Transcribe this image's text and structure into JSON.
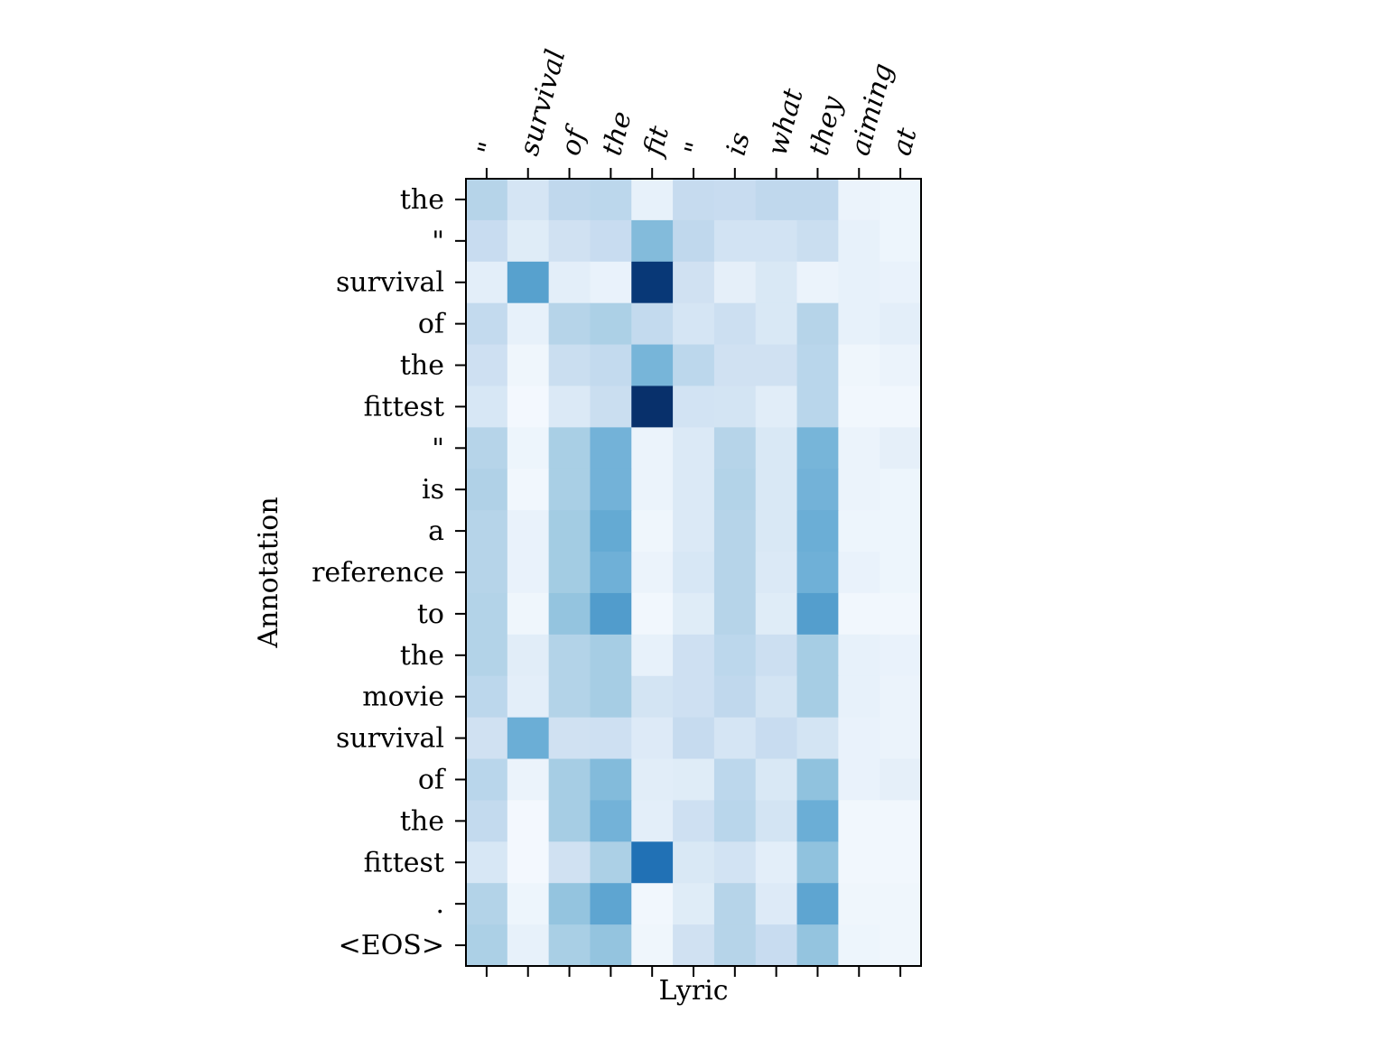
{
  "chart_data": {
    "type": "heatmap",
    "xlabel": "Lyric",
    "ylabel": "Annotation",
    "x_labels": [
      "\"",
      "survival",
      "of",
      "the",
      "fit",
      "\"",
      "is",
      "what",
      "they",
      "aiming",
      "at"
    ],
    "y_labels": [
      "the",
      "\"",
      "survival",
      "of",
      "the",
      "fittest",
      "\"",
      "is",
      "a",
      "reference",
      "to",
      "the",
      "movie",
      "survival",
      "of",
      "the",
      "fittest",
      ".",
      "<EOS>"
    ],
    "colormap": "Blues",
    "values": [
      [
        0.3,
        0.17,
        0.27,
        0.28,
        0.08,
        0.25,
        0.24,
        0.27,
        0.27,
        0.06,
        0.05
      ],
      [
        0.24,
        0.12,
        0.2,
        0.24,
        0.44,
        0.27,
        0.19,
        0.19,
        0.23,
        0.08,
        0.05
      ],
      [
        0.1,
        0.56,
        0.1,
        0.07,
        0.97,
        0.2,
        0.09,
        0.15,
        0.06,
        0.08,
        0.07
      ],
      [
        0.26,
        0.08,
        0.3,
        0.33,
        0.26,
        0.17,
        0.22,
        0.15,
        0.3,
        0.08,
        0.1
      ],
      [
        0.21,
        0.04,
        0.23,
        0.26,
        0.47,
        0.28,
        0.2,
        0.2,
        0.29,
        0.04,
        0.06
      ],
      [
        0.16,
        0.02,
        0.14,
        0.23,
        1.0,
        0.19,
        0.18,
        0.11,
        0.29,
        0.03,
        0.03
      ],
      [
        0.3,
        0.05,
        0.34,
        0.48,
        0.06,
        0.14,
        0.3,
        0.15,
        0.47,
        0.06,
        0.09
      ],
      [
        0.32,
        0.03,
        0.34,
        0.48,
        0.06,
        0.14,
        0.31,
        0.15,
        0.48,
        0.06,
        0.05
      ],
      [
        0.3,
        0.07,
        0.36,
        0.52,
        0.04,
        0.14,
        0.3,
        0.15,
        0.5,
        0.05,
        0.05
      ],
      [
        0.3,
        0.07,
        0.36,
        0.49,
        0.06,
        0.16,
        0.3,
        0.14,
        0.49,
        0.07,
        0.05
      ],
      [
        0.31,
        0.04,
        0.4,
        0.58,
        0.03,
        0.12,
        0.3,
        0.12,
        0.57,
        0.03,
        0.03
      ],
      [
        0.31,
        0.11,
        0.31,
        0.35,
        0.08,
        0.21,
        0.28,
        0.22,
        0.35,
        0.08,
        0.07
      ],
      [
        0.28,
        0.1,
        0.31,
        0.35,
        0.18,
        0.21,
        0.27,
        0.18,
        0.35,
        0.08,
        0.06
      ],
      [
        0.2,
        0.5,
        0.2,
        0.21,
        0.13,
        0.25,
        0.17,
        0.24,
        0.18,
        0.07,
        0.06
      ],
      [
        0.29,
        0.06,
        0.35,
        0.44,
        0.11,
        0.12,
        0.28,
        0.15,
        0.41,
        0.07,
        0.09
      ],
      [
        0.26,
        0.02,
        0.35,
        0.48,
        0.1,
        0.21,
        0.29,
        0.18,
        0.5,
        0.03,
        0.03
      ],
      [
        0.16,
        0.02,
        0.2,
        0.33,
        0.75,
        0.15,
        0.19,
        0.1,
        0.41,
        0.03,
        0.03
      ],
      [
        0.31,
        0.05,
        0.4,
        0.54,
        0.03,
        0.12,
        0.3,
        0.13,
        0.54,
        0.04,
        0.04
      ],
      [
        0.33,
        0.08,
        0.34,
        0.4,
        0.04,
        0.2,
        0.3,
        0.24,
        0.4,
        0.05,
        0.04
      ]
    ]
  }
}
